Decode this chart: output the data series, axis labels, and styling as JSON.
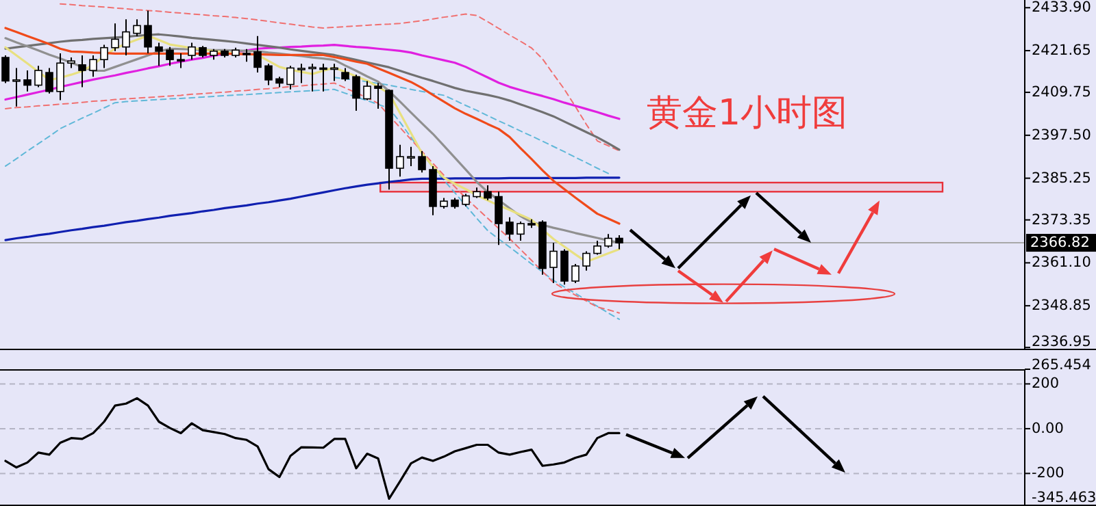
{
  "chart_data": [
    {
      "type": "candlestick",
      "title": "黄金1小时图",
      "tick_labels": "y",
      "categories": [
        null,
        null,
        null,
        null,
        null,
        null,
        null,
        null,
        null,
        null,
        null,
        null,
        null,
        null,
        null,
        null,
        null,
        null,
        null,
        null,
        null,
        null,
        null,
        null,
        null,
        null,
        null,
        null,
        null,
        null,
        null,
        null,
        null,
        null,
        null,
        null,
        null,
        null,
        null,
        null,
        null,
        null,
        null,
        null,
        null,
        null,
        null,
        null,
        null,
        null,
        null,
        null,
        null,
        null,
        null,
        null,
        null
      ],
      "ohlc": [
        [
          2419.7,
          2420.3,
          2412.4,
          2413.0
        ],
        [
          2413.0,
          2416.7,
          2405.7,
          2413.3
        ],
        [
          2413.3,
          2416.0,
          2410.0,
          2411.8
        ],
        [
          2411.8,
          2417.3,
          2411.2,
          2416.0
        ],
        [
          2415.4,
          2416.7,
          2409.4,
          2410.0
        ],
        [
          2410.0,
          2420.9,
          2407.5,
          2418.1
        ],
        [
          2418.1,
          2419.7,
          2416.7,
          2418.7
        ],
        [
          2417.6,
          2420.3,
          2411.2,
          2416.0
        ],
        [
          2416.0,
          2420.3,
          2414.2,
          2419.1
        ],
        [
          2419.1,
          2423.3,
          2416.7,
          2422.5
        ],
        [
          2422.5,
          2429.4,
          2421.5,
          2424.9
        ],
        [
          2422.7,
          2430.6,
          2420.3,
          2427.0
        ],
        [
          2426.6,
          2430.6,
          2425.8,
          2428.8
        ],
        [
          2428.8,
          2433.1,
          2420.9,
          2422.7
        ],
        [
          2422.7,
          2423.9,
          2417.3,
          2421.5
        ],
        [
          2421.8,
          2422.7,
          2417.3,
          2419.1
        ],
        [
          2419.1,
          2420.9,
          2416.7,
          2418.8
        ],
        [
          2420.3,
          2423.9,
          2419.1,
          2422.7
        ],
        [
          2422.5,
          2423.0,
          2419.7,
          2420.3
        ],
        [
          2420.3,
          2422.1,
          2419.1,
          2421.5
        ],
        [
          2421.5,
          2422.1,
          2419.7,
          2420.3
        ],
        [
          2420.3,
          2422.5,
          2419.7,
          2421.8
        ],
        [
          2420.9,
          2422.1,
          2418.5,
          2420.5
        ],
        [
          2421.3,
          2425.8,
          2415.4,
          2416.9
        ],
        [
          2417.3,
          2417.9,
          2411.8,
          2413.3
        ],
        [
          2413.6,
          2414.2,
          2411.2,
          2412.4
        ],
        [
          2412.0,
          2417.3,
          2410.6,
          2416.7
        ],
        [
          2416.4,
          2417.9,
          2412.4,
          2416.6
        ],
        [
          2416.7,
          2417.9,
          2410.0,
          2416.9
        ],
        [
          2416.7,
          2417.9,
          2410.0,
          2416.6
        ],
        [
          2416.6,
          2417.9,
          2413.0,
          2416.7
        ],
        [
          2415.4,
          2416.7,
          2413.0,
          2413.6
        ],
        [
          2414.2,
          2414.8,
          2404.5,
          2408.1
        ],
        [
          2407.9,
          2413.0,
          2407.5,
          2411.5
        ],
        [
          2411.5,
          2412.4,
          2405.1,
          2410.9
        ],
        [
          2410.3,
          2410.6,
          2382.0,
          2388.1
        ],
        [
          2388.1,
          2394.8,
          2385.7,
          2391.4
        ],
        [
          2391.1,
          2394.2,
          2388.7,
          2391.4
        ],
        [
          2391.4,
          2393.0,
          2386.9,
          2387.7
        ],
        [
          2387.7,
          2388.7,
          2374.7,
          2377.2
        ],
        [
          2377.2,
          2379.6,
          2376.6,
          2378.7
        ],
        [
          2379.0,
          2379.6,
          2376.6,
          2377.2
        ],
        [
          2377.8,
          2380.8,
          2377.2,
          2380.2
        ],
        [
          2380.0,
          2382.6,
          2379.6,
          2381.4
        ],
        [
          2381.4,
          2383.2,
          2379.0,
          2379.6
        ],
        [
          2380.0,
          2381.4,
          2366.2,
          2372.3
        ],
        [
          2372.7,
          2374.1,
          2367.4,
          2369.3
        ],
        [
          2369.3,
          2372.9,
          2367.4,
          2372.3
        ],
        [
          2372.3,
          2373.5,
          2371.1,
          2372.0
        ],
        [
          2372.7,
          2373.2,
          2357.7,
          2359.5
        ],
        [
          2359.8,
          2366.8,
          2355.3,
          2364.4
        ],
        [
          2364.4,
          2365.0,
          2354.9,
          2355.9
        ],
        [
          2355.9,
          2360.8,
          2355.3,
          2360.2
        ],
        [
          2360.2,
          2364.4,
          2358.9,
          2363.8
        ],
        [
          2363.8,
          2367.4,
          2363.4,
          2365.9
        ],
        [
          2365.9,
          2369.3,
          2365.4,
          2368.1
        ],
        [
          2368.1,
          2369.0,
          2365.0,
          2366.8
        ]
      ],
      "series": [
        {
          "type": "line",
          "color": "#60b8d8",
          "line_style": "dashed",
          "values": [
            2388.7,
            2390.8,
            2393.0,
            2395.1,
            2397.2,
            2399.4,
            2400.9,
            2402.4,
            2403.8,
            2405.3,
            2406.8,
            2407.1,
            2407.3,
            2407.5,
            2407.7,
            2407.9,
            2408.0,
            2408.2,
            2408.4,
            2408.6,
            2408.8,
            2409.0,
            2409.1,
            2409.3,
            2409.5,
            2409.7,
            2409.9,
            2410.1,
            2410.2,
            2410.4,
            2410.6,
            2409.5,
            2408.4,
            2407.4,
            2406.3,
            2405.2,
            2401.2,
            2396.9,
            2392.6,
            2388.3,
            2384.7,
            2381.1,
            2377.4,
            2373.8,
            2370.3,
            2367.9,
            2365.6,
            2363.2,
            2360.8,
            2358.5,
            2356.1,
            2354.2,
            2352.4,
            2350.5,
            2348.7,
            2346.8,
            2345.0
          ]
        },
        {
          "type": "line",
          "color": "#60b8d8",
          "line_style": "dashed",
          "values": [
            null,
            null,
            null,
            null,
            null,
            null,
            null,
            null,
            null,
            null,
            null,
            null,
            null,
            null,
            null,
            null,
            null,
            null,
            null,
            null,
            null,
            null,
            null,
            null,
            null,
            null,
            null,
            null,
            null,
            null,
            2414.0,
            2413.6,
            2413.2,
            2412.8,
            2412.3,
            2411.8,
            2411.2,
            2410.6,
            2410.0,
            2409.4,
            2408.9,
            2407.5,
            2406.0,
            2404.6,
            2403.1,
            2401.6,
            2400.2,
            2398.7,
            2397.3,
            2395.8,
            2394.3,
            2392.8,
            2391.2,
            2389.7,
            2388.1,
            2386.6,
            null
          ]
        },
        {
          "type": "line",
          "color": "#f07070",
          "line_style": "dashed",
          "values": [
            null,
            null,
            null,
            null,
            null,
            2435.0,
            2434.8,
            2434.5,
            2434.3,
            2434.1,
            2433.8,
            2433.6,
            2433.3,
            2433.1,
            2432.9,
            2432.6,
            2432.4,
            2432.1,
            2431.9,
            2431.6,
            2431.4,
            2431.1,
            2430.8,
            2430.4,
            2430.0,
            2429.6,
            2429.2,
            2428.8,
            2428.4,
            2428.1,
            2428.3,
            2428.5,
            2428.7,
            2428.9,
            2429.1,
            2429.2,
            2429.4,
            2429.8,
            2430.2,
            2430.7,
            2431.2,
            2431.6,
            2432.1,
            2431.7,
            2429.9,
            2428.0,
            2426.1,
            2424.3,
            2422.4,
            2419.3,
            2414.9,
            2410.6,
            2405.7,
            2400.6,
            2395.9,
            2394.5,
            2393.1
          ]
        },
        {
          "type": "line",
          "color": "#f07070",
          "line_style": "dashed",
          "values": [
            2405.1,
            2405.4,
            2405.6,
            2405.9,
            2406.1,
            2406.4,
            2406.6,
            2406.9,
            2407.2,
            2407.4,
            2407.7,
            2407.9,
            2408.1,
            2408.3,
            2408.5,
            2408.7,
            2408.9,
            2409.2,
            2409.4,
            2409.6,
            2409.8,
            2410.1,
            2410.3,
            2410.6,
            2410.8,
            2411.1,
            2411.4,
            2411.6,
            2411.9,
            2412.1,
            2412.4,
            2411.0,
            2409.6,
            2408.2,
            2406.6,
            2403.1,
            2399.7,
            2396.3,
            2392.9,
            2389.5,
            2386.1,
            2382.8,
            2379.6,
            2376.7,
            2373.8,
            2370.9,
            2368.0,
            2364.9,
            2361.8,
            2358.6,
            2355.5,
            2353.6,
            2351.9,
            2350.2,
            2348.5,
            2347.7,
            2346.8
          ]
        },
        {
          "type": "line",
          "color": "#1020b0",
          "values": [
            2367.6,
            2368.1,
            2368.5,
            2369.0,
            2369.4,
            2369.9,
            2370.4,
            2370.8,
            2371.3,
            2371.7,
            2372.2,
            2372.7,
            2373.1,
            2373.6,
            2374.0,
            2374.5,
            2374.9,
            2375.3,
            2375.8,
            2376.2,
            2376.7,
            2377.1,
            2377.5,
            2378.0,
            2378.4,
            2378.9,
            2379.4,
            2380.0,
            2380.6,
            2381.2,
            2381.8,
            2382.4,
            2382.9,
            2383.4,
            2383.8,
            2384.2,
            2384.5,
            2384.9,
            2385.1,
            2385.1,
            2385.1,
            2385.2,
            2385.2,
            2385.2,
            2385.2,
            2385.2,
            2385.3,
            2385.3,
            2385.3,
            2385.3,
            2385.3,
            2385.3,
            2385.3,
            2385.4,
            2385.4,
            2385.4,
            2385.4
          ]
        },
        {
          "type": "line",
          "color": "#e020e0",
          "values": [
            2407.7,
            2408.4,
            2409.1,
            2409.8,
            2410.5,
            2411.3,
            2412.0,
            2412.7,
            2413.4,
            2414.0,
            2414.6,
            2415.3,
            2415.9,
            2416.6,
            2417.2,
            2417.9,
            2418.5,
            2419.1,
            2419.6,
            2420.2,
            2420.7,
            2421.2,
            2421.7,
            2422.2,
            2422.4,
            2422.5,
            2422.7,
            2422.8,
            2423.0,
            2423.1,
            2423.3,
            2423.0,
            2422.7,
            2422.5,
            2422.2,
            2421.9,
            2421.6,
            2421.1,
            2420.3,
            2419.6,
            2418.9,
            2418.2,
            2417.0,
            2415.5,
            2414.0,
            2412.5,
            2411.3,
            2410.4,
            2409.5,
            2408.7,
            2407.8,
            2406.8,
            2405.9,
            2405.0,
            2404.1,
            2403.1,
            2402.2
          ]
        },
        {
          "type": "line",
          "color": "#707070",
          "values": [
            2422.2,
            2422.6,
            2423.0,
            2423.4,
            2423.8,
            2424.2,
            2424.5,
            2424.7,
            2425.0,
            2425.2,
            2425.4,
            2425.6,
            2425.9,
            2426.1,
            2426.3,
            2426.0,
            2425.7,
            2425.3,
            2425.0,
            2424.7,
            2424.4,
            2424.1,
            2423.7,
            2423.3,
            2422.9,
            2422.5,
            2422.0,
            2421.6,
            2421.2,
            2420.8,
            2420.4,
            2419.7,
            2419.0,
            2418.3,
            2417.6,
            2416.9,
            2415.9,
            2414.9,
            2413.9,
            2413.0,
            2412.0,
            2411.0,
            2410.2,
            2409.6,
            2409.0,
            2408.3,
            2407.4,
            2406.3,
            2405.2,
            2404.1,
            2402.9,
            2401.4,
            2399.9,
            2398.4,
            2396.9,
            2395.2,
            2393.4
          ]
        },
        {
          "type": "line",
          "color": "#909090",
          "values": [
            2425.2,
            2424.0,
            2422.9,
            2421.7,
            2420.5,
            2419.4,
            2418.2,
            2417.0,
            2415.9,
            2415.9,
            2417.0,
            2418.1,
            2419.2,
            2420.3,
            2421.4,
            2422.2,
            2422.1,
            2422.0,
            2421.9,
            2421.8,
            2421.8,
            2421.7,
            2421.6,
            2421.5,
            2421.1,
            2420.8,
            2420.4,
            2420.1,
            2419.7,
            2419.4,
            2419.0,
            2417.4,
            2415.9,
            2414.3,
            2412.8,
            2410.1,
            2407.1,
            2404.0,
            2400.9,
            2397.9,
            2394.5,
            2391.1,
            2387.7,
            2384.2,
            2381.3,
            2379.0,
            2376.7,
            2374.4,
            2372.7,
            2371.9,
            2371.1,
            2370.4,
            2369.6,
            2368.9,
            2368.2,
            2367.5,
            2366.8
          ]
        },
        {
          "type": "line",
          "color": "#e8e080",
          "values": [
            2422.6,
            2420.3,
            2418.0,
            2415.6,
            2413.3,
            2413.9,
            2414.8,
            2415.8,
            2417.7,
            2420.0,
            2422.3,
            2423.6,
            2424.8,
            2425.9,
            2424.7,
            2423.4,
            2422.9,
            2422.4,
            2422.0,
            2421.5,
            2421.2,
            2420.9,
            2420.7,
            2420.4,
            2418.7,
            2417.0,
            2416.2,
            2415.6,
            2415.0,
            2415.9,
            2416.8,
            2415.6,
            2414.3,
            2413.1,
            2411.3,
            2409.5,
            2403.8,
            2398.1,
            2392.4,
            2388.6,
            2385.4,
            2383.7,
            2382.1,
            2380.4,
            2378.9,
            2377.5,
            2376.2,
            2374.8,
            2373.4,
            2370.6,
            2367.9,
            2365.7,
            2363.5,
            2361.4,
            2362.6,
            2363.8,
            2365.0
          ]
        },
        {
          "type": "line",
          "color": "#f04a1a",
          "values": [
            2428.1,
            2427.0,
            2425.8,
            2424.7,
            2423.5,
            2422.2,
            2421.4,
            2421.3,
            2421.1,
            2421.0,
            2420.8,
            2420.8,
            2420.8,
            2420.8,
            2420.8,
            2420.8,
            2420.8,
            2420.8,
            2420.8,
            2420.8,
            2420.8,
            2420.7,
            2420.6,
            2420.6,
            2420.5,
            2420.4,
            2420.4,
            2420.4,
            2420.4,
            2420.4,
            2419.8,
            2419.2,
            2418.5,
            2417.9,
            2416.6,
            2415.3,
            2414.0,
            2412.7,
            2411.0,
            2409.0,
            2407.1,
            2405.2,
            2403.6,
            2402.2,
            2400.7,
            2399.3,
            2397.0,
            2393.8,
            2390.7,
            2387.5,
            2384.5,
            2382.1,
            2379.7,
            2377.4,
            2375.1,
            2373.7,
            2372.3
          ]
        }
      ],
      "ylim": [
        2336.2,
        2436.1
      ],
      "yticks": [
        {
          "value": 2433.9,
          "label": "2433.90"
        },
        2421.65,
        2409.75,
        {
          "value": 2397.5,
          "label": "2397.50"
        },
        2385.25,
        2373.35,
        {
          "value": 2361.1,
          "label": "2361.10"
        },
        2348.85,
        2336.95
      ],
      "ref_lines": [
        {
          "axis": "y",
          "value": 2366.82,
          "label": "2366.82",
          "color": "#a8a8a8"
        }
      ],
      "bands": [
        {
          "axis": "y",
          "from": 2381.4,
          "to": 2384.0,
          "color": "#e8303a"
        }
      ]
    },
    {
      "type": "line",
      "tick_labels": "y",
      "categories": [
        null,
        null,
        null,
        null,
        null,
        null,
        null,
        null,
        null,
        null,
        null,
        null,
        null,
        null,
        null,
        null,
        null,
        null,
        null,
        null,
        null,
        null,
        null,
        null,
        null,
        null,
        null,
        null,
        null,
        null,
        null,
        null,
        null,
        null,
        null,
        null,
        null,
        null,
        null,
        null,
        null,
        null,
        null,
        null,
        null,
        null,
        null,
        null,
        null,
        null,
        null,
        null,
        null,
        null,
        null,
        null,
        null
      ],
      "series": [
        {
          "color": "#000000",
          "values": [
            -144,
            -173,
            -151,
            -107,
            -116,
            -63,
            -42,
            -46,
            -20,
            31,
            103,
            112,
            136,
            103,
            31,
            3,
            -20,
            24,
            -7,
            -15,
            -24,
            -42,
            -50,
            -79,
            -181,
            -216,
            -122,
            -83,
            -84,
            -85,
            -46,
            -46,
            -177,
            -112,
            -133,
            -313,
            -235,
            -155,
            -129,
            -144,
            -125,
            -101,
            -87,
            -72,
            -72,
            -107,
            -116,
            -104,
            -94,
            -166,
            -160,
            -151,
            -130,
            -116,
            -42,
            -20,
            -20
          ]
        }
      ],
      "ylim": [
        -345.463,
        265.454
      ],
      "yticks": [
        265.454,
        200,
        {
          "value": 0,
          "label": "0.00"
        },
        -200,
        -345.463
      ],
      "ref_lines": [
        {
          "axis": "y",
          "value": 200,
          "color": "#b4b4c4",
          "line_style": "dashed"
        },
        {
          "axis": "y",
          "value": 0,
          "color": "#b4b4c4",
          "line_style": "dashed"
        },
        {
          "axis": "y",
          "value": -200,
          "color": "#b4b4c4",
          "line_style": "dashed"
        }
      ]
    }
  ]
}
